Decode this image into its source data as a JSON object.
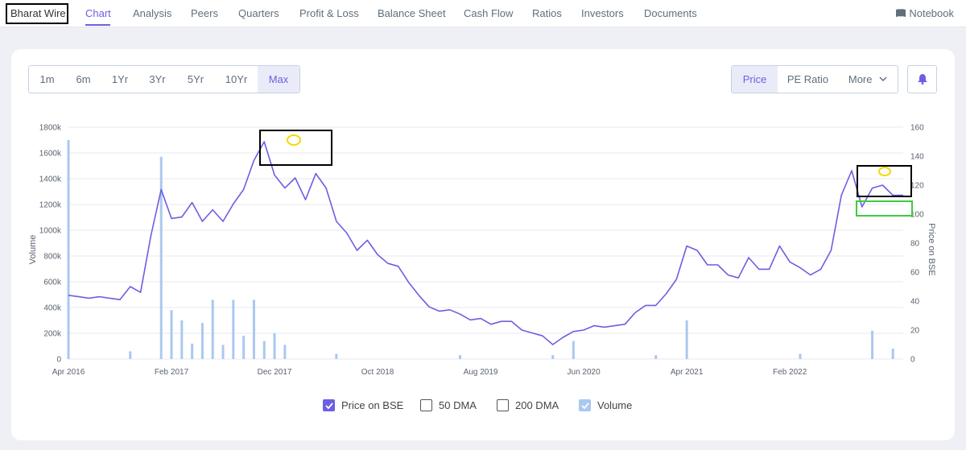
{
  "brand": "Bharat Wire",
  "nav": {
    "items": [
      "Chart",
      "Analysis",
      "Peers",
      "Quarters",
      "Profit & Loss",
      "Balance Sheet",
      "Cash Flow",
      "Ratios",
      "Investors",
      "Documents"
    ],
    "active": "Chart",
    "notebook": "Notebook"
  },
  "ranges": [
    "1m",
    "6m",
    "1Yr",
    "3Yr",
    "5Yr",
    "10Yr",
    "Max"
  ],
  "active_range": "Max",
  "metrics": {
    "price": "Price",
    "pe": "PE Ratio",
    "more": "More"
  },
  "legend": {
    "price": "Price on BSE",
    "dma50": "50 DMA",
    "dma200": "200 DMA",
    "volume": "Volume"
  },
  "colors": {
    "accent": "#6c5fe1",
    "volume": "#aac8f0",
    "highlight_black": "#000000",
    "highlight_green": "#3ccc3c",
    "marker": "#f5d800"
  },
  "chart_data": {
    "type": "line",
    "y_left_label": "Volume",
    "y_right_label": "Price on BSE",
    "y_left_ticks": [
      "0",
      "200k",
      "400k",
      "600k",
      "800k",
      "1000k",
      "1200k",
      "1400k",
      "1600k",
      "1800k"
    ],
    "y_right_ticks": [
      "0",
      "20",
      "40",
      "60",
      "80",
      "100",
      "120",
      "140",
      "160"
    ],
    "x_ticks": [
      "Apr 2016",
      "Feb 2017",
      "Dec 2017",
      "Oct 2018",
      "Aug 2019",
      "Jun 2020",
      "Apr 2021",
      "Feb 2022"
    ],
    "ylim_left": [
      0,
      1800000
    ],
    "ylim_right": [
      0,
      160
    ],
    "price_series": {
      "name": "Price on BSE",
      "x": [
        "2016-04",
        "2016-05",
        "2016-06",
        "2016-07",
        "2016-08",
        "2016-09",
        "2016-10",
        "2016-11",
        "2016-12",
        "2017-01",
        "2017-02",
        "2017-03",
        "2017-04",
        "2017-05",
        "2017-06",
        "2017-07",
        "2017-08",
        "2017-09",
        "2017-10",
        "2017-11",
        "2017-12",
        "2018-01",
        "2018-02",
        "2018-03",
        "2018-04",
        "2018-05",
        "2018-06",
        "2018-07",
        "2018-08",
        "2018-09",
        "2018-10",
        "2018-11",
        "2018-12",
        "2019-01",
        "2019-02",
        "2019-03",
        "2019-04",
        "2019-05",
        "2019-06",
        "2019-07",
        "2019-08",
        "2019-09",
        "2019-10",
        "2019-11",
        "2019-12",
        "2020-01",
        "2020-02",
        "2020-03",
        "2020-04",
        "2020-05",
        "2020-06",
        "2020-07",
        "2020-08",
        "2020-09",
        "2020-10",
        "2020-11",
        "2020-12",
        "2021-01",
        "2021-02",
        "2021-03",
        "2021-04",
        "2021-05",
        "2021-06",
        "2021-07",
        "2021-08",
        "2021-09",
        "2021-10",
        "2021-11",
        "2021-12",
        "2022-01",
        "2022-02",
        "2022-03",
        "2022-04",
        "2022-05",
        "2022-06",
        "2022-07",
        "2022-08",
        "2022-09",
        "2022-10",
        "2022-11",
        "2022-12",
        "2023-01"
      ],
      "values": [
        44,
        43,
        42,
        43,
        42,
        41,
        50,
        46,
        85,
        117,
        97,
        98,
        108,
        95,
        103,
        95,
        107,
        117,
        137,
        150,
        127,
        118,
        125,
        110,
        128,
        118,
        95,
        87,
        75,
        82,
        72,
        66,
        64,
        53,
        44,
        36,
        33,
        34,
        31,
        27,
        28,
        24,
        26,
        26,
        20,
        18,
        16,
        10,
        15,
        19,
        20,
        23,
        22,
        23,
        24,
        32,
        37,
        37,
        45,
        55,
        78,
        75,
        65,
        65,
        58,
        56,
        70,
        62,
        62,
        78,
        67,
        63,
        58,
        62,
        75,
        113,
        130,
        105,
        118,
        120,
        113,
        113
      ]
    },
    "volume_series": {
      "name": "Volume",
      "x": [
        "2016-04",
        "2016-10",
        "2017-01",
        "2017-02",
        "2017-03",
        "2017-04",
        "2017-05",
        "2017-06",
        "2017-07",
        "2017-08",
        "2017-09",
        "2017-10",
        "2017-11",
        "2017-12",
        "2018-01",
        "2018-06",
        "2019-06",
        "2020-03",
        "2020-05",
        "2021-01",
        "2021-04",
        "2022-03",
        "2022-10",
        "2022-12"
      ],
      "values": [
        1700000,
        60000,
        1570000,
        380000,
        300000,
        120000,
        280000,
        460000,
        110000,
        460000,
        180000,
        460000,
        140000,
        200000,
        110000,
        40000,
        30000,
        30000,
        140000,
        30000,
        300000,
        40000,
        220000,
        80000
      ]
    }
  }
}
